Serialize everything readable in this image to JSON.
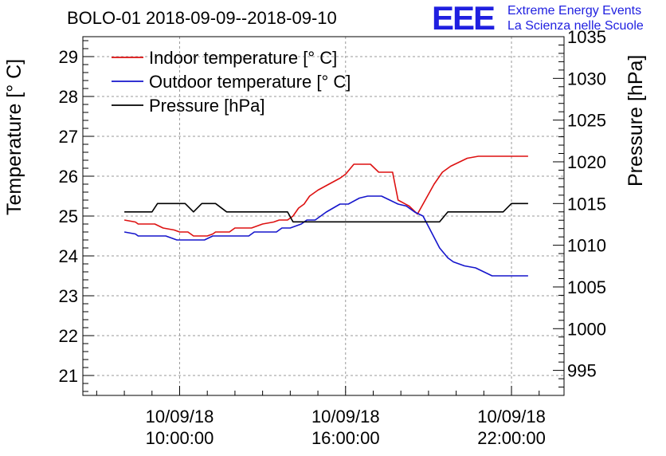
{
  "chart_data": {
    "type": "line",
    "title": "BOLO-01 2018-09-09--2018-09-10",
    "ylabel_left": "Temperature [° C]",
    "ylabel_right": "Pressure [hPa]",
    "xlabel": "",
    "x_unit": "hours",
    "xlim": [
      6.5,
      23.9
    ],
    "ylim_left": [
      20.5,
      29.5
    ],
    "ylim_right": [
      992.0,
      1035.0
    ],
    "y_ticks_left": [
      21,
      22,
      23,
      24,
      25,
      26,
      27,
      28,
      29
    ],
    "y_ticks_right": [
      995,
      1000,
      1005,
      1010,
      1015,
      1020,
      1025,
      1030,
      1035
    ],
    "x_ticks": [
      {
        "x": 10,
        "date": "10/09/18",
        "time": "10:00:00"
      },
      {
        "x": 16,
        "date": "10/09/18",
        "time": "16:00:00"
      },
      {
        "x": 22,
        "date": "10/09/18",
        "time": "22:00:00"
      }
    ],
    "grid": true,
    "legend_position": "top-left",
    "series": [
      {
        "name": "Indoor temperature [° C]",
        "axis": "left",
        "color": "#dd1111",
        "points": [
          [
            8.0,
            24.9
          ],
          [
            8.4,
            24.85
          ],
          [
            8.5,
            24.8
          ],
          [
            9.1,
            24.8
          ],
          [
            9.4,
            24.7
          ],
          [
            9.8,
            24.65
          ],
          [
            10.0,
            24.6
          ],
          [
            10.3,
            24.6
          ],
          [
            10.5,
            24.5
          ],
          [
            11.0,
            24.5
          ],
          [
            11.2,
            24.55
          ],
          [
            11.3,
            24.6
          ],
          [
            11.8,
            24.6
          ],
          [
            12.0,
            24.7
          ],
          [
            12.6,
            24.7
          ],
          [
            12.8,
            24.75
          ],
          [
            13.0,
            24.8
          ],
          [
            13.4,
            24.85
          ],
          [
            13.6,
            24.9
          ],
          [
            13.9,
            24.9
          ],
          [
            14.1,
            25.0
          ],
          [
            14.3,
            25.2
          ],
          [
            14.5,
            25.3
          ],
          [
            14.7,
            25.5
          ],
          [
            15.0,
            25.65
          ],
          [
            15.4,
            25.8
          ],
          [
            15.8,
            25.95
          ],
          [
            16.0,
            26.05
          ],
          [
            16.3,
            26.3
          ],
          [
            16.6,
            26.3
          ],
          [
            16.9,
            26.3
          ],
          [
            17.2,
            26.1
          ],
          [
            17.7,
            26.1
          ],
          [
            17.9,
            25.4
          ],
          [
            18.3,
            25.25
          ],
          [
            18.6,
            25.05
          ],
          [
            18.8,
            25.3
          ],
          [
            19.2,
            25.8
          ],
          [
            19.5,
            26.1
          ],
          [
            19.8,
            26.25
          ],
          [
            20.1,
            26.35
          ],
          [
            20.4,
            26.45
          ],
          [
            20.8,
            26.5
          ],
          [
            21.2,
            26.5
          ],
          [
            21.6,
            26.5
          ],
          [
            22.0,
            26.5
          ],
          [
            22.4,
            26.5
          ],
          [
            22.6,
            26.5
          ]
        ]
      },
      {
        "name": "Outdoor temperature [° C]",
        "axis": "left",
        "color": "#1515cc",
        "points": [
          [
            8.0,
            24.6
          ],
          [
            8.4,
            24.55
          ],
          [
            8.5,
            24.5
          ],
          [
            9.0,
            24.5
          ],
          [
            9.5,
            24.5
          ],
          [
            9.9,
            24.4
          ],
          [
            10.3,
            24.4
          ],
          [
            10.9,
            24.4
          ],
          [
            11.2,
            24.5
          ],
          [
            11.8,
            24.5
          ],
          [
            12.5,
            24.5
          ],
          [
            12.7,
            24.6
          ],
          [
            13.5,
            24.6
          ],
          [
            13.7,
            24.7
          ],
          [
            14.0,
            24.7
          ],
          [
            14.4,
            24.8
          ],
          [
            14.6,
            24.9
          ],
          [
            14.9,
            24.9
          ],
          [
            15.3,
            25.1
          ],
          [
            15.8,
            25.3
          ],
          [
            16.1,
            25.3
          ],
          [
            16.5,
            25.45
          ],
          [
            16.8,
            25.5
          ],
          [
            17.3,
            25.5
          ],
          [
            17.6,
            25.4
          ],
          [
            17.9,
            25.3
          ],
          [
            18.2,
            25.25
          ],
          [
            18.5,
            25.1
          ],
          [
            18.8,
            25.0
          ],
          [
            19.1,
            24.6
          ],
          [
            19.4,
            24.2
          ],
          [
            19.7,
            23.95
          ],
          [
            19.9,
            23.85
          ],
          [
            20.3,
            23.75
          ],
          [
            20.7,
            23.7
          ],
          [
            21.0,
            23.6
          ],
          [
            21.3,
            23.5
          ],
          [
            21.7,
            23.5
          ],
          [
            22.0,
            23.5
          ],
          [
            22.4,
            23.5
          ],
          [
            22.6,
            23.5
          ]
        ]
      },
      {
        "name": "Pressure [hPa]",
        "axis": "right",
        "color": "#000000",
        "points": [
          [
            8.0,
            1014.0
          ],
          [
            9.0,
            1014.0
          ],
          [
            9.2,
            1015.0
          ],
          [
            10.2,
            1015.0
          ],
          [
            10.5,
            1014.0
          ],
          [
            10.8,
            1015.0
          ],
          [
            11.3,
            1015.0
          ],
          [
            11.7,
            1014.0
          ],
          [
            12.5,
            1014.0
          ],
          [
            13.5,
            1014.0
          ],
          [
            13.9,
            1014.0
          ],
          [
            14.1,
            1012.8
          ],
          [
            15.0,
            1012.8
          ],
          [
            16.0,
            1012.8
          ],
          [
            17.0,
            1012.8
          ],
          [
            18.0,
            1012.8
          ],
          [
            19.0,
            1012.8
          ],
          [
            19.4,
            1012.8
          ],
          [
            19.7,
            1014.0
          ],
          [
            20.3,
            1014.0
          ],
          [
            21.0,
            1014.0
          ],
          [
            21.7,
            1014.0
          ],
          [
            22.0,
            1015.0
          ],
          [
            22.4,
            1015.0
          ],
          [
            22.6,
            1015.0
          ]
        ]
      }
    ]
  },
  "logo": {
    "mark": "EEE",
    "line1": "Extreme Energy Events",
    "line2": "La Scienza nelle Scuole"
  }
}
